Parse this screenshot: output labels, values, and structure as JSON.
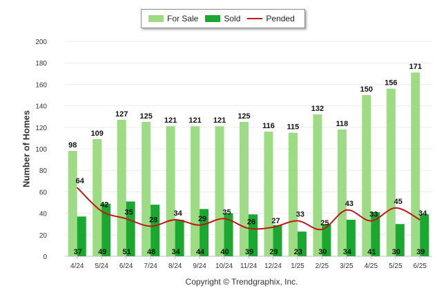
{
  "chart_data": {
    "type": "bar",
    "title": "",
    "xlabel": "",
    "ylabel": "Number of Homes",
    "ylim": [
      0,
      200
    ],
    "yticks": [
      "0",
      "20",
      "40",
      "60",
      "80",
      "100",
      "120",
      "140",
      "160",
      "180",
      "200"
    ],
    "categories": [
      "4/24",
      "5/24",
      "6/24",
      "7/24",
      "8/24",
      "9/24",
      "10/24",
      "11/24",
      "12/24",
      "1/25",
      "2/25",
      "3/25",
      "4/25",
      "5/25",
      "6/25"
    ],
    "series": [
      {
        "name": "For Sale",
        "kind": "bar",
        "color": "#9ddc84",
        "values": [
          98,
          109,
          127,
          125,
          121,
          121,
          121,
          125,
          116,
          115,
          132,
          118,
          150,
          156,
          171
        ]
      },
      {
        "name": "Sold",
        "kind": "bar",
        "color": "#1aa831",
        "values": [
          37,
          49,
          51,
          48,
          34,
          44,
          40,
          39,
          29,
          23,
          30,
          34,
          41,
          30,
          39
        ]
      },
      {
        "name": "Pended",
        "kind": "line",
        "color": "#c41414",
        "values": [
          64,
          42,
          35,
          28,
          34,
          29,
          35,
          26,
          27,
          33,
          25,
          43,
          33,
          45,
          34
        ]
      }
    ],
    "grid": true,
    "legend_position": "top-center"
  },
  "footer": "Copyright © Trendgraphix, Inc."
}
